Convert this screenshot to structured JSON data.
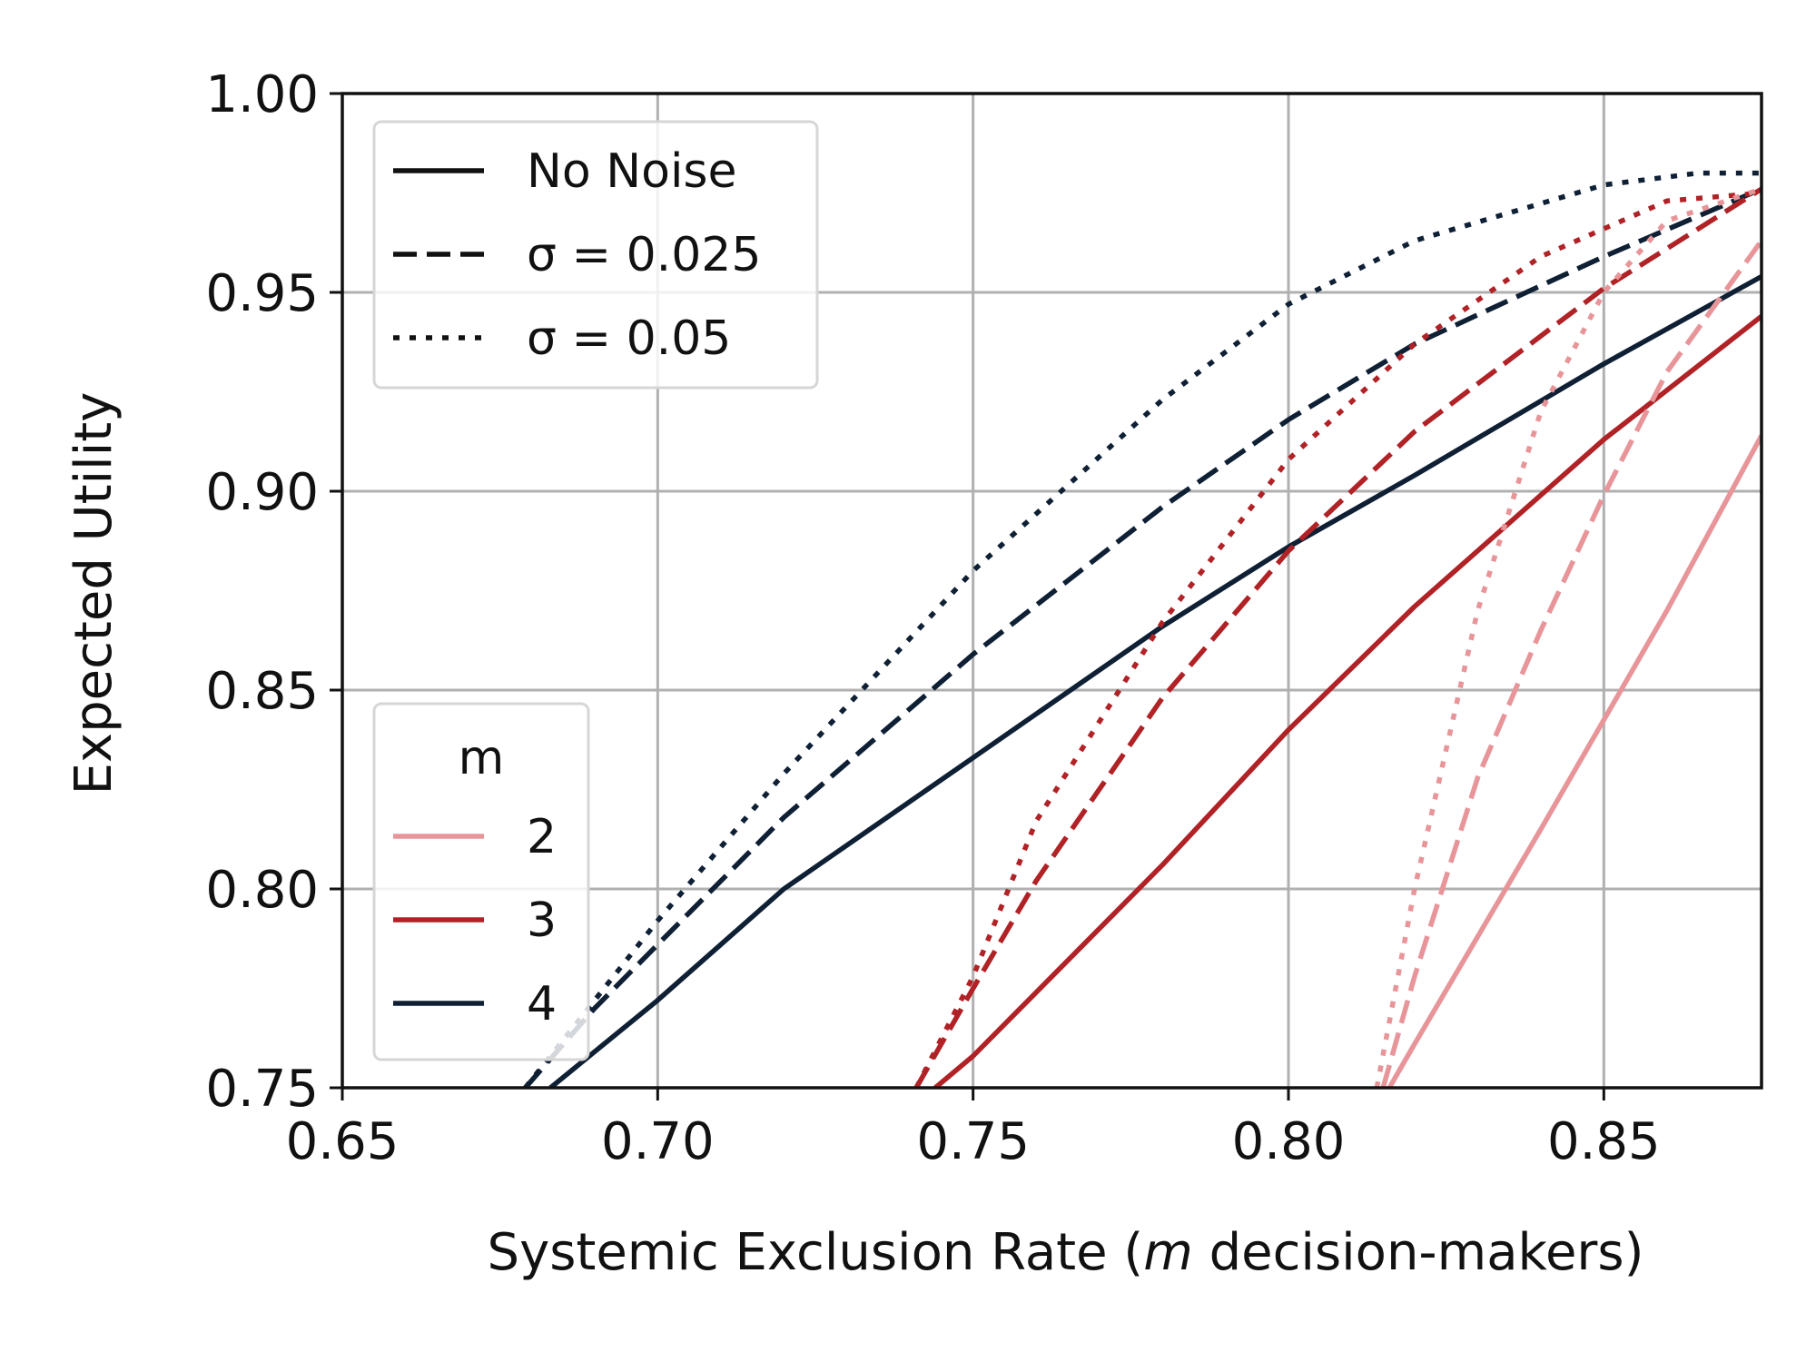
{
  "chart_data": {
    "type": "line",
    "title": "",
    "xlabel_prefix": "Systemic Exclusion Rate (",
    "xlabel_var": "m",
    "xlabel_suffix": " decision-makers)",
    "ylabel": "Expected Utility",
    "xlim": [
      0.65,
      0.875
    ],
    "ylim": [
      0.75,
      1.0
    ],
    "xticks": [
      0.65,
      0.7,
      0.75,
      0.8,
      0.85
    ],
    "xtick_labels": [
      "0.65",
      "0.70",
      "0.75",
      "0.80",
      "0.85"
    ],
    "yticks": [
      0.75,
      0.8,
      0.85,
      0.9,
      0.95,
      1.0
    ],
    "ytick_labels": [
      "0.75",
      "0.80",
      "0.85",
      "0.90",
      "0.95",
      "1.00"
    ],
    "grid": true,
    "colors": {
      "m2": "#e8959a",
      "m3": "#b02226",
      "m4": "#0f2035"
    },
    "style_legend": {
      "position": "upper-left",
      "entries": [
        {
          "label": "No Noise",
          "dash": "solid"
        },
        {
          "label": "σ = 0.025",
          "dash": "dashed"
        },
        {
          "label": "σ = 0.05",
          "dash": "dotted"
        }
      ]
    },
    "m_legend": {
      "position": "lower-left",
      "title": "m",
      "entries": [
        {
          "label": "2",
          "color": "#e8959a"
        },
        {
          "label": "3",
          "color": "#b02226"
        },
        {
          "label": "4",
          "color": "#0f2035"
        }
      ]
    },
    "series": [
      {
        "m": 4,
        "noise": "No Noise",
        "dash": "solid",
        "color": "#0f2035",
        "x": [
          0.683,
          0.7,
          0.72,
          0.75,
          0.78,
          0.8,
          0.82,
          0.85,
          0.875
        ],
        "y": [
          0.75,
          0.772,
          0.8,
          0.833,
          0.866,
          0.886,
          0.904,
          0.932,
          0.954
        ]
      },
      {
        "m": 4,
        "noise": "σ = 0.025",
        "dash": "dashed",
        "color": "#0f2035",
        "x": [
          0.679,
          0.69,
          0.7,
          0.72,
          0.75,
          0.78,
          0.8,
          0.82,
          0.85,
          0.875
        ],
        "y": [
          0.75,
          0.77,
          0.786,
          0.818,
          0.859,
          0.896,
          0.918,
          0.937,
          0.959,
          0.976
        ]
      },
      {
        "m": 4,
        "noise": "σ = 0.05",
        "dash": "dotted",
        "color": "#0f2035",
        "x": [
          0.679,
          0.69,
          0.7,
          0.72,
          0.75,
          0.78,
          0.8,
          0.82,
          0.85,
          0.865,
          0.875
        ],
        "y": [
          0.75,
          0.772,
          0.792,
          0.829,
          0.88,
          0.923,
          0.947,
          0.963,
          0.977,
          0.98,
          0.98
        ]
      },
      {
        "m": 3,
        "noise": "No Noise",
        "dash": "solid",
        "color": "#b02226",
        "x": [
          0.744,
          0.75,
          0.78,
          0.8,
          0.82,
          0.85,
          0.875
        ],
        "y": [
          0.75,
          0.758,
          0.806,
          0.84,
          0.871,
          0.913,
          0.944
        ]
      },
      {
        "m": 3,
        "noise": "σ = 0.025",
        "dash": "dashed",
        "color": "#b02226",
        "x": [
          0.741,
          0.75,
          0.76,
          0.78,
          0.8,
          0.82,
          0.85,
          0.875
        ],
        "y": [
          0.75,
          0.775,
          0.802,
          0.848,
          0.885,
          0.915,
          0.951,
          0.976
        ]
      },
      {
        "m": 3,
        "noise": "σ = 0.05",
        "dash": "dotted",
        "color": "#b02226",
        "x": [
          0.741,
          0.75,
          0.76,
          0.78,
          0.8,
          0.82,
          0.84,
          0.86,
          0.875
        ],
        "y": [
          0.75,
          0.778,
          0.817,
          0.867,
          0.908,
          0.937,
          0.959,
          0.973,
          0.975
        ]
      },
      {
        "m": 2,
        "noise": "No Noise",
        "dash": "solid",
        "color": "#e8959a",
        "x": [
          0.816,
          0.82,
          0.84,
          0.86,
          0.875
        ],
        "y": [
          0.75,
          0.761,
          0.815,
          0.87,
          0.914
        ]
      },
      {
        "m": 2,
        "noise": "σ = 0.025",
        "dash": "dashed",
        "color": "#e8959a",
        "x": [
          0.815,
          0.82,
          0.83,
          0.84,
          0.85,
          0.86,
          0.875
        ],
        "y": [
          0.75,
          0.778,
          0.828,
          0.865,
          0.899,
          0.93,
          0.963
        ]
      },
      {
        "m": 2,
        "noise": "σ = 0.05",
        "dash": "dotted",
        "color": "#e8959a",
        "x": [
          0.814,
          0.82,
          0.83,
          0.84,
          0.85,
          0.86,
          0.875
        ],
        "y": [
          0.75,
          0.8,
          0.87,
          0.92,
          0.95,
          0.968,
          0.976
        ]
      }
    ]
  }
}
